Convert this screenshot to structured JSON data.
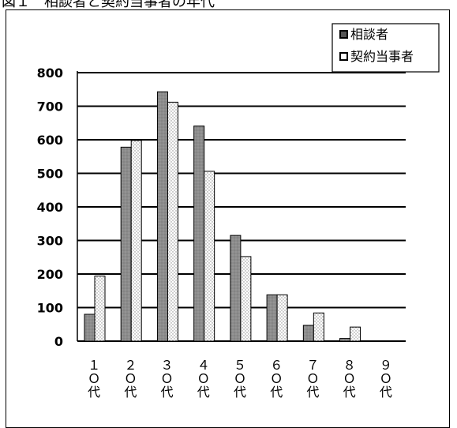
{
  "page": {
    "title": "図１　相談者と契約当事者の年代"
  },
  "chart_data": {
    "type": "bar",
    "title": "",
    "xlabel": "",
    "ylabel": "",
    "ylim": [
      0,
      800
    ],
    "yticks": [
      0,
      100,
      200,
      300,
      400,
      500,
      600,
      700,
      800
    ],
    "grid": true,
    "legend_position": "top-right",
    "categories": [
      "10代",
      "20代",
      "30代",
      "40代",
      "50代",
      "60代",
      "70代",
      "80代",
      "90代"
    ],
    "series": [
      {
        "name": "相談者",
        "color": "#8c8c8c",
        "pattern": "solid-gray",
        "values": [
          80,
          578,
          743,
          641,
          315,
          138,
          47,
          8,
          0
        ]
      },
      {
        "name": "契約当事者",
        "color": "#ffffff",
        "pattern": "light-dotted",
        "values": [
          194,
          598,
          712,
          506,
          252,
          138,
          84,
          42,
          0
        ]
      }
    ]
  }
}
